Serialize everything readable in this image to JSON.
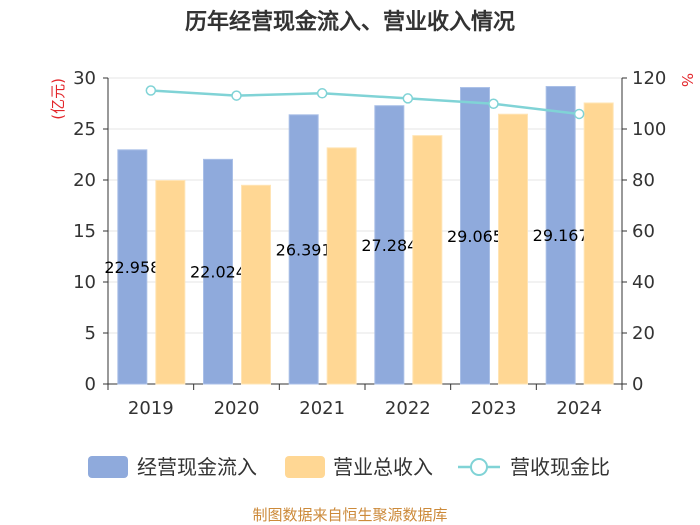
{
  "footer": "制图数据来自恒生聚源数据库",
  "colors": {
    "cash_inflow": "#8FAADC",
    "revenue": "#FFD794",
    "ratio": "#80D3D6",
    "axis_title": "#E3262B",
    "footer": "#CC8A3A",
    "axis": "#333333",
    "grid": "#E5E5E5"
  },
  "chart_data": {
    "type": "bar",
    "title": "历年经营现金流入、营业收入情况",
    "categories": [
      "2019",
      "2020",
      "2021",
      "2022",
      "2023",
      "2024"
    ],
    "y_left": {
      "label": "(亿元)",
      "range": [
        0,
        30
      ],
      "ticks": [
        0,
        5,
        10,
        15,
        20,
        25,
        30
      ]
    },
    "y_right": {
      "label": "%",
      "range": [
        0,
        120
      ],
      "ticks": [
        0,
        20,
        40,
        60,
        80,
        100,
        120
      ]
    },
    "series": [
      {
        "name": "经营现金流入",
        "type": "bar",
        "axis": "left",
        "data_labels": true,
        "values": [
          22.958,
          22.024,
          26.391,
          27.284,
          29.065,
          29.167
        ]
      },
      {
        "name": "营业总收入",
        "type": "bar",
        "axis": "left",
        "data_labels": false,
        "values": [
          19.95,
          19.48,
          23.15,
          24.35,
          26.45,
          27.55
        ]
      },
      {
        "name": "营收现金比",
        "type": "line",
        "axis": "right",
        "data_labels": false,
        "values": [
          115.1,
          113.1,
          114.0,
          112.0,
          109.9,
          105.9
        ]
      }
    ],
    "legend": {
      "position": "bottom"
    },
    "grid": true
  }
}
